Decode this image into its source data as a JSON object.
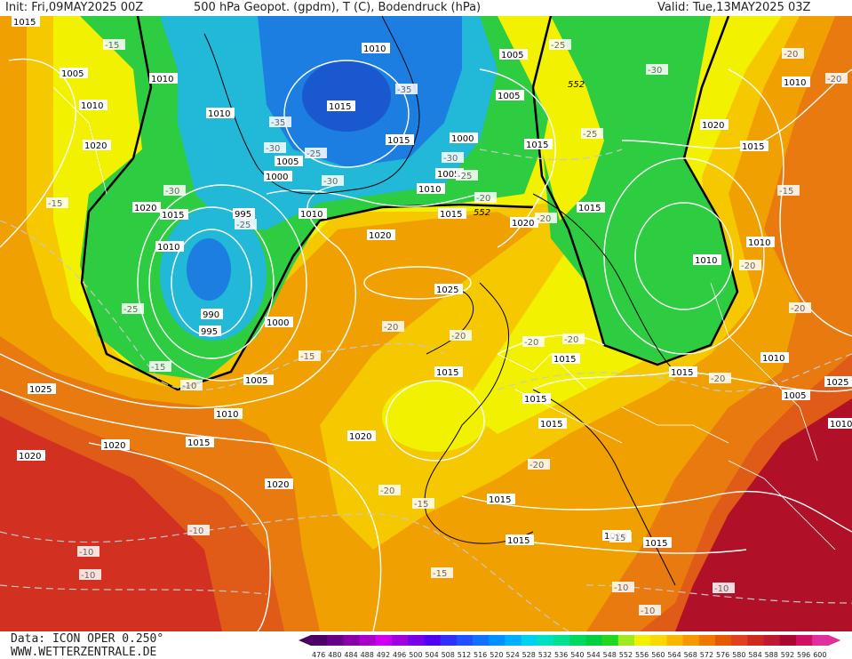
{
  "header": {
    "init": "Init: Fri,09MAY2025 00Z",
    "title": "500 hPa Geopot. (gpdm), T (C), Bodendruck (hPa)",
    "valid": "Valid: Tue,13MAY2025 03Z"
  },
  "footer": {
    "data_source": "Data: ICON OPER 0.250°",
    "website": "WWW.WETTERZENTRALE.DE"
  },
  "legend": {
    "values": [
      "476",
      "480",
      "484",
      "488",
      "492",
      "496",
      "500",
      "504",
      "508",
      "512",
      "516",
      "520",
      "524",
      "528",
      "532",
      "536",
      "540",
      "544",
      "548",
      "552",
      "556",
      "560",
      "564",
      "568",
      "572",
      "576",
      "580",
      "584",
      "588",
      "592",
      "596",
      "600"
    ],
    "colors": [
      "#4b0066",
      "#660088",
      "#8800aa",
      "#aa00cc",
      "#cc00ee",
      "#a000e0",
      "#7800e8",
      "#5000f0",
      "#3030f8",
      "#2050ff",
      "#1070ff",
      "#0090ff",
      "#00b0ff",
      "#00d0f0",
      "#00e0c0",
      "#00e090",
      "#00d860",
      "#00d040",
      "#20d820",
      "#a0e820",
      "#f0f000",
      "#f8d800",
      "#f8b800",
      "#f89800",
      "#f07800",
      "#e85800",
      "#e04020",
      "#d02820",
      "#c01830",
      "#a80830",
      "#d01060",
      "#e030a0"
    ]
  },
  "map": {
    "theme_colors": {
      "green": "#2ecc40",
      "green_light": "#3ed84a",
      "cyan": "#22b8d8",
      "blue": "#1c7ee0",
      "blue_deep": "#1a58d0",
      "yellow": "#f2f200",
      "yellow_orange": "#f6c800",
      "orange": "#f0a000",
      "orange_dark": "#e87a10",
      "red_orange": "#e05a18",
      "red": "#d23020",
      "crimson": "#b01028"
    },
    "pressure_labels": [
      "1005",
      "1010",
      "1010",
      "1015",
      "1020",
      "1020",
      "1015",
      "1010",
      "1010",
      "1005",
      "1010",
      "1015",
      "1015",
      "995",
      "990",
      "995",
      "1000",
      "1005",
      "1000",
      "1005",
      "1010",
      "1015",
      "1010",
      "1015",
      "1020",
      "1020",
      "1025",
      "1020",
      "1015",
      "1020",
      "1015",
      "1015",
      "1015",
      "1015",
      "1015",
      "1015",
      "1015",
      "1020",
      "1010",
      "1010",
      "1010",
      "1015",
      "1020",
      "1010",
      "1005",
      "1005",
      "1025",
      "1010",
      "1015",
      "1005",
      "1000",
      "1010",
      "1025",
      "1020",
      "1020",
      "1015",
      "1005"
    ],
    "temp_labels": [
      "-15",
      "-25",
      "-35",
      "-30",
      "-35",
      "-30",
      "-25",
      "-25",
      "-30",
      "-25",
      "-30",
      "-15",
      "-30",
      "-25",
      "-20",
      "-20",
      "-20",
      "-20",
      "-20",
      "-20",
      "-20",
      "-15",
      "-10",
      "-10",
      "-10",
      "-15",
      "-10",
      "-10",
      "-10",
      "-15",
      "-20",
      "-15",
      "-20",
      "-20",
      "-20",
      "-15",
      "-15",
      "-10",
      "-25",
      "-20",
      "-20",
      "-15"
    ],
    "geopot_labels": [
      "552",
      "552"
    ]
  }
}
